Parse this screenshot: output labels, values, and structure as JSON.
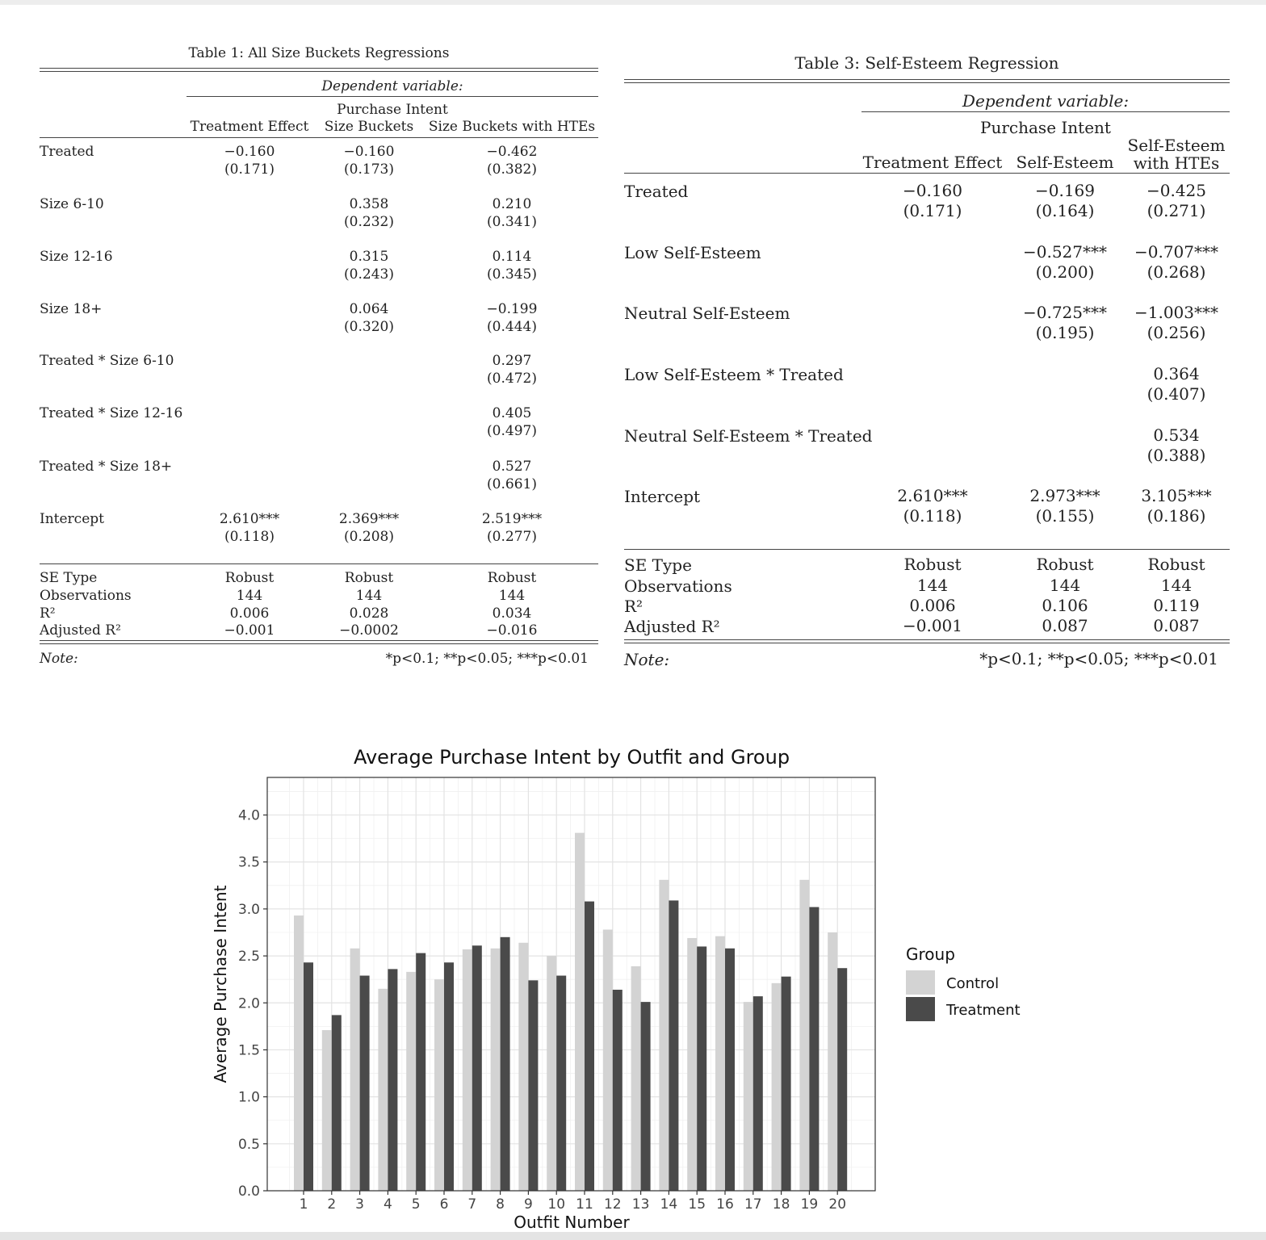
{
  "table1": {
    "title": "Table 1:  All Size Buckets Regressions",
    "dep_var_label": "Dependent variable:",
    "dep_var_name": "Purchase Intent",
    "columns": [
      "Treatment Effect",
      "Size Buckets",
      "Size Buckets with HTEs"
    ],
    "rows": [
      {
        "label": "Treated",
        "cells": [
          [
            "−0.160",
            "(0.171)"
          ],
          [
            "−0.160",
            "(0.173)"
          ],
          [
            "−0.462",
            "(0.382)"
          ]
        ]
      },
      {
        "label": "Size 6-10",
        "cells": [
          [
            "",
            ""
          ],
          [
            "0.358",
            "(0.232)"
          ],
          [
            "0.210",
            "(0.341)"
          ]
        ]
      },
      {
        "label": "Size 12-16",
        "cells": [
          [
            "",
            ""
          ],
          [
            "0.315",
            "(0.243)"
          ],
          [
            "0.114",
            "(0.345)"
          ]
        ]
      },
      {
        "label": "Size 18+",
        "cells": [
          [
            "",
            ""
          ],
          [
            "0.064",
            "(0.320)"
          ],
          [
            "−0.199",
            "(0.444)"
          ]
        ]
      },
      {
        "label": "Treated * Size 6-10",
        "cells": [
          [
            "",
            ""
          ],
          [
            "",
            ""
          ],
          [
            "0.297",
            "(0.472)"
          ]
        ]
      },
      {
        "label": "Treated * Size 12-16",
        "cells": [
          [
            "",
            ""
          ],
          [
            "",
            ""
          ],
          [
            "0.405",
            "(0.497)"
          ]
        ]
      },
      {
        "label": "Treated * Size 18+",
        "cells": [
          [
            "",
            ""
          ],
          [
            "",
            ""
          ],
          [
            "0.527",
            "(0.661)"
          ]
        ]
      },
      {
        "label": "Intercept",
        "cells": [
          [
            "2.610***",
            "(0.118)"
          ],
          [
            "2.369***",
            "(0.208)"
          ],
          [
            "2.519***",
            "(0.277)"
          ]
        ]
      }
    ],
    "stats": [
      {
        "label": "SE Type",
        "values": [
          "Robust",
          "Robust",
          "Robust"
        ]
      },
      {
        "label": "Observations",
        "values": [
          "144",
          "144",
          "144"
        ]
      },
      {
        "label": "R²",
        "values": [
          "0.006",
          "0.028",
          "0.034"
        ]
      },
      {
        "label": "Adjusted R²",
        "values": [
          "−0.001",
          "−0.0002",
          "−0.016"
        ]
      }
    ],
    "note_label": "Note:",
    "note_text": "*p<0.1; **p<0.05; ***p<0.01"
  },
  "table3": {
    "title": "Table 3:  Self-Esteem Regression",
    "dep_var_label": "Dependent variable:",
    "dep_var_name": "Purchase Intent",
    "columns": [
      "Treatment Effect",
      "Self-Esteem",
      "Self-Esteem\nwith HTEs"
    ],
    "rows": [
      {
        "label": "Treated",
        "cells": [
          [
            "−0.160",
            "(0.171)"
          ],
          [
            "−0.169",
            "(0.164)"
          ],
          [
            "−0.425",
            "(0.271)"
          ]
        ]
      },
      {
        "label": "Low Self-Esteem",
        "cells": [
          [
            "",
            ""
          ],
          [
            "−0.527***",
            "(0.200)"
          ],
          [
            "−0.707***",
            "(0.268)"
          ]
        ]
      },
      {
        "label": "Neutral Self-Esteem",
        "cells": [
          [
            "",
            ""
          ],
          [
            "−0.725***",
            "(0.195)"
          ],
          [
            "−1.003***",
            "(0.256)"
          ]
        ]
      },
      {
        "label": "Low Self-Esteem * Treated",
        "cells": [
          [
            "",
            ""
          ],
          [
            "",
            ""
          ],
          [
            "0.364",
            "(0.407)"
          ]
        ]
      },
      {
        "label": "Neutral Self-Esteem * Treated",
        "cells": [
          [
            "",
            ""
          ],
          [
            "",
            ""
          ],
          [
            "0.534",
            "(0.388)"
          ]
        ]
      },
      {
        "label": "Intercept",
        "cells": [
          [
            "2.610***",
            "(0.118)"
          ],
          [
            "2.973***",
            "(0.155)"
          ],
          [
            "3.105***",
            "(0.186)"
          ]
        ]
      }
    ],
    "stats": [
      {
        "label": "SE Type",
        "values": [
          "Robust",
          "Robust",
          "Robust"
        ]
      },
      {
        "label": "Observations",
        "values": [
          "144",
          "144",
          "144"
        ]
      },
      {
        "label": "R²",
        "values": [
          "0.006",
          "0.106",
          "0.119"
        ]
      },
      {
        "label": "Adjusted R²",
        "values": [
          "−0.001",
          "0.087",
          "0.087"
        ]
      }
    ],
    "note_label": "Note:",
    "note_text": "*p<0.1; **p<0.05; ***p<0.01"
  },
  "chart_data": {
    "type": "bar",
    "title": "Average Purchase Intent by Outfit and Group",
    "xlabel": "Outfit Number",
    "ylabel": "Average Purchase Intent",
    "categories": [
      "1",
      "2",
      "3",
      "4",
      "5",
      "6",
      "7",
      "8",
      "9",
      "10",
      "11",
      "12",
      "13",
      "14",
      "15",
      "16",
      "17",
      "18",
      "19",
      "20"
    ],
    "ylim": [
      0,
      4.4
    ],
    "yticks": [
      "0.0",
      "0.5",
      "1.0",
      "1.5",
      "2.0",
      "2.5",
      "3.0",
      "3.5",
      "4.0"
    ],
    "grid": true,
    "legend_title": "Group",
    "legend_position": "right",
    "series": [
      {
        "name": "Control",
        "color": "#d3d3d3",
        "values": [
          2.93,
          1.71,
          2.58,
          2.15,
          2.33,
          2.25,
          2.57,
          2.58,
          2.64,
          2.5,
          3.81,
          2.78,
          2.39,
          3.31,
          2.69,
          2.71,
          2.01,
          2.21,
          3.31,
          2.75
        ]
      },
      {
        "name": "Treatment",
        "color": "#4a4a4a",
        "values": [
          2.43,
          1.87,
          2.29,
          2.36,
          2.53,
          2.43,
          2.61,
          2.7,
          2.24,
          2.29,
          3.08,
          2.14,
          2.01,
          3.09,
          2.6,
          2.58,
          2.07,
          2.28,
          3.02,
          2.37
        ]
      }
    ]
  }
}
